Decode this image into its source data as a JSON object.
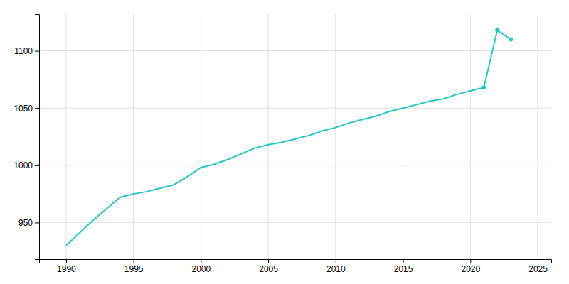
{
  "chart_data": {
    "type": "line",
    "x": [
      1990,
      1991,
      1992,
      1993,
      1994,
      1995,
      1996,
      1997,
      1998,
      1999,
      2000,
      2001,
      2002,
      2003,
      2004,
      2005,
      2006,
      2007,
      2008,
      2009,
      2010,
      2011,
      2012,
      2013,
      2014,
      2015,
      2016,
      2017,
      2018,
      2019,
      2020,
      2021,
      2022,
      2023
    ],
    "series": [
      {
        "type": "line",
        "color": "#26c6c6",
        "values": [
          930,
          941,
          952,
          962,
          972,
          975,
          977,
          980,
          983,
          990,
          998,
          1001,
          1005,
          1010,
          1015,
          1018,
          1020,
          1023,
          1026,
          1030,
          1033,
          1037,
          1040,
          1043,
          1047,
          1050,
          1053,
          1056,
          1058,
          1062,
          1065,
          1068,
          1118,
          1110
        ]
      },
      {
        "type": "scatter",
        "color": "#26c6c6",
        "values": [
          null,
          null,
          null,
          null,
          null,
          null,
          null,
          null,
          null,
          null,
          null,
          null,
          null,
          null,
          null,
          null,
          null,
          null,
          null,
          null,
          null,
          null,
          null,
          null,
          null,
          null,
          null,
          null,
          null,
          null,
          null,
          1068,
          1118,
          1110
        ]
      }
    ],
    "xlim": [
      1988,
      2026
    ],
    "ylim": [
      918,
      1132
    ],
    "xticks": [
      1990,
      1995,
      2000,
      2005,
      2010,
      2015,
      2020,
      2025
    ],
    "yticks": [
      950,
      1000,
      1050,
      1100
    ],
    "grid": true
  }
}
